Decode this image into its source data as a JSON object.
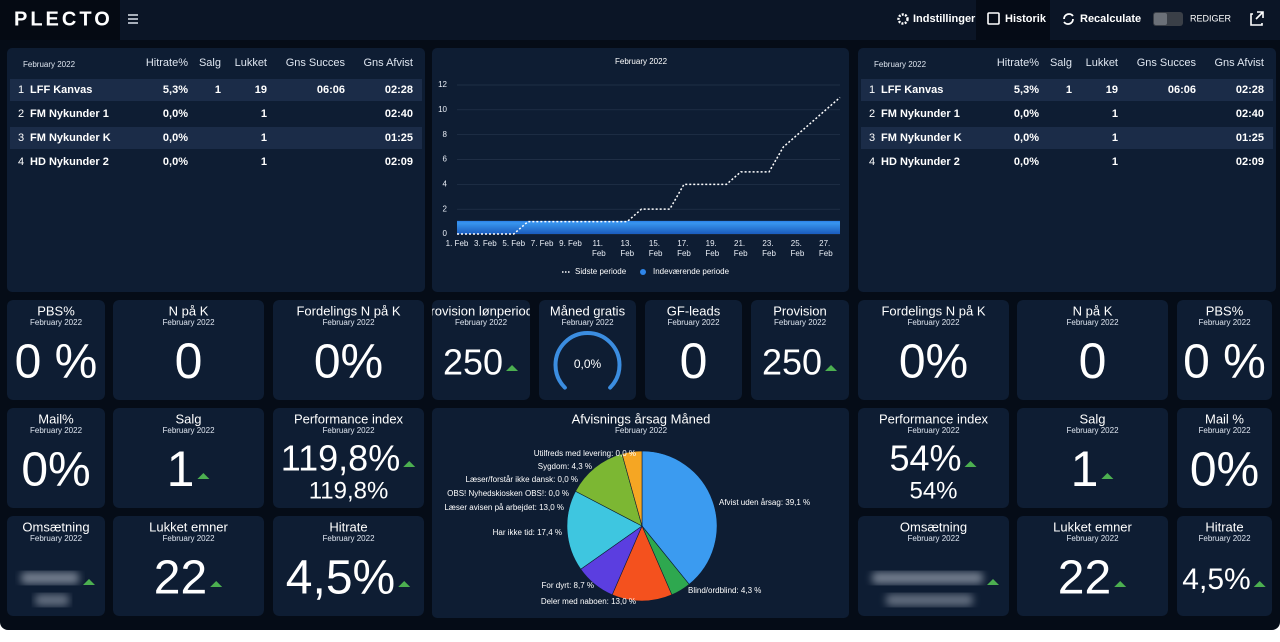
{
  "header": {
    "logo": "PLECTO",
    "nav": [
      "Indstillinger",
      "Historik",
      "Recalculate"
    ],
    "edit": "REDIGER"
  },
  "tables": [
    {
      "period": "February 2022",
      "columns": [
        "Hitrate%",
        "Salg",
        "Lukket",
        "Gns Succes",
        "Gns Afvist"
      ],
      "rows": [
        [
          "1",
          "LFF Kanvas",
          "5,3%",
          "1",
          "19",
          "06:06",
          "02:28"
        ],
        [
          "2",
          "FM Nykunder 1",
          "0,0%",
          null,
          "1",
          null,
          "02:40"
        ],
        [
          "3",
          "FM Nykunder K",
          "0,0%",
          null,
          "1",
          null,
          "01:25"
        ],
        [
          "4",
          "HD Nykunder 2",
          "0,0%",
          null,
          "1",
          null,
          "02:09"
        ]
      ]
    },
    {
      "period": "February 2022",
      "columns": [
        "Hitrate%",
        "Salg",
        "Lukket",
        "Gns Succes",
        "Gns Afvist"
      ],
      "rows": [
        [
          "1",
          "LFF Kanvas",
          "5,3%",
          "1",
          "19",
          "06:06",
          "02:28"
        ],
        [
          "2",
          "FM Nykunder 1",
          "0,0%",
          null,
          "1",
          null,
          "02:40"
        ],
        [
          "3",
          "FM Nykunder K",
          "0,0%",
          null,
          "1",
          null,
          "01:25"
        ],
        [
          "4",
          "HD Nykunder 2",
          "0,0%",
          null,
          "1",
          null,
          "02:09"
        ]
      ]
    }
  ],
  "chart_data": [
    {
      "type": "line",
      "title": "February 2022",
      "categories": [
        "1. Feb",
        null,
        "3. Feb",
        null,
        "5. Feb",
        null,
        "7. Feb",
        null,
        "9. Feb",
        null,
        "11. Feb",
        null,
        "13. Feb",
        null,
        "15. Feb",
        null,
        "17. Feb",
        null,
        "19. Feb",
        null,
        "21. Feb",
        null,
        "23. Feb",
        null,
        "25. Feb",
        null,
        "27. Feb",
        null
      ],
      "series": [
        {
          "name": "Sidste periode",
          "color": "#ffffff",
          "style": "dotted",
          "values": [
            0,
            0,
            0,
            0,
            0,
            1,
            1,
            1,
            1,
            1,
            1,
            1,
            1,
            2,
            2,
            2,
            4,
            4,
            4,
            4,
            5,
            5,
            5,
            7,
            8,
            9,
            10,
            11
          ]
        },
        {
          "name": "Indeværende periode",
          "color": "#2f86ea",
          "style": "area",
          "values": [
            1,
            1,
            1,
            1,
            1,
            1,
            1,
            1,
            1,
            1,
            1,
            1,
            1,
            1,
            1,
            1,
            1,
            1,
            1,
            1,
            1,
            1,
            1,
            1,
            1,
            1,
            1,
            1
          ]
        }
      ],
      "ylim": [
        0,
        12
      ],
      "yticks": [
        0,
        2,
        4,
        6,
        8,
        10,
        12
      ],
      "grid": true,
      "legend": "bottom"
    },
    {
      "type": "pie",
      "title": "Afvisnings årsag Måned",
      "subtitle": "February 2022",
      "values": [
        39.1,
        4.3,
        13.0,
        8.7,
        17.4,
        13.0,
        0.0,
        0.0,
        4.3,
        0.0
      ],
      "value_labels": [
        "Afvist uden årsag: 39,1 %",
        "Blind/ordblind: 4,3 %",
        "Deler med naboen: 13,0 %",
        "For dyrt: 8,7 %",
        "Har ikke tid: 17,4 %",
        "Læser avisen på arbejdet: 13,0 %",
        "OBS! Nyhedskiosken OBS!: 0,0 %",
        "Læser/forstår ikke dansk: 0,0 %",
        "Sygdom: 4,3 %",
        "Utilfreds med levering: 0,0 %"
      ],
      "colors": [
        "#3b9bf0",
        "#2ea84f",
        "#f4511e",
        "#5b3ee0",
        "#3ec6e0",
        "#7cb733",
        "#9fbf5a",
        "#a0a0a0",
        "#f5a623",
        "#8a8a3a"
      ]
    }
  ],
  "tiles": [
    {
      "title": "PBS%",
      "period": "February 2022",
      "value": "0 %",
      "color": "#e53935"
    },
    {
      "title": "N på K",
      "period": "February 2022",
      "value": "0"
    },
    {
      "title": "Fordelings N på K",
      "period": "February 2022",
      "value": "0%"
    },
    {
      "title": "Provision lønperiode",
      "period": "February 2022",
      "value": "250",
      "trend": "up"
    },
    {
      "title": "Måned gratis",
      "period": "February 2022",
      "value": "0,0%",
      "gauge": true
    },
    {
      "title": "GF-leads",
      "period": "February 2022",
      "value": "0"
    },
    {
      "title": "Provision",
      "period": "February 2022",
      "value": "250",
      "trend": "up"
    },
    {
      "title": "Fordelings N på K",
      "period": "February 2022",
      "value": "0%"
    },
    {
      "title": "N på K",
      "period": "February 2022",
      "value": "0"
    },
    {
      "title": "PBS%",
      "period": "February 2022",
      "value": "0 %",
      "color": "#e53935"
    },
    {
      "title": "Mail%",
      "period": "February 2022",
      "value": "0%",
      "color": "#e53935"
    },
    {
      "title": "Salg",
      "period": "February 2022",
      "value": "1",
      "trend": "up"
    },
    {
      "title": "Performance index",
      "period": "February 2022",
      "value": "119,8%",
      "value2": "119,8%",
      "trend": "up",
      "color": "#2ecc71"
    },
    {
      "title": "Performance index",
      "period": "February 2022",
      "value": "54%",
      "value2": "54%",
      "trend": "up",
      "color": "#8e8c5c"
    },
    {
      "title": "Salg",
      "period": "February 2022",
      "value": "1",
      "trend": "up"
    },
    {
      "title": "Mail %",
      "period": "February 2022",
      "value": "0%",
      "color": "#e53935"
    },
    {
      "title": "Omsætning",
      "period": "February 2022",
      "blurred": true,
      "trend": "up"
    },
    {
      "title": "Lukket emner",
      "period": "February 2022",
      "value": "22",
      "trend": "up"
    },
    {
      "title": "Hitrate",
      "period": "February 2022",
      "value": "4,5%",
      "trend": "up"
    },
    {
      "title": "Omsætning",
      "period": "February 2022",
      "blurred": true,
      "trend": "up"
    },
    {
      "title": "Lukket emner",
      "period": "February 2022",
      "value": "22",
      "trend": "up"
    },
    {
      "title": "Hitrate",
      "period": "February 2022",
      "value": "4,5%",
      "trend": "up"
    }
  ]
}
